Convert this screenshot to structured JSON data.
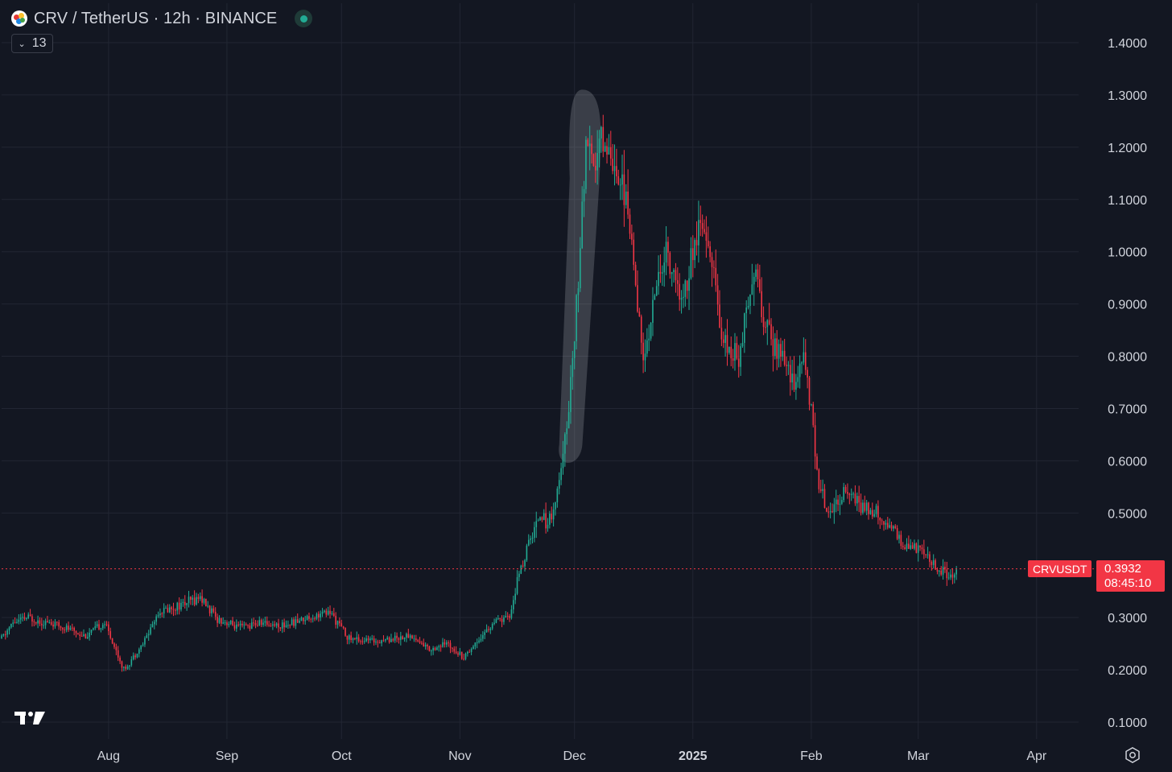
{
  "header": {
    "title": "CRV / TetherUS · 12h · BINANCE",
    "indicators_count": "13"
  },
  "colors": {
    "background": "#131722",
    "up": "#22ab94",
    "down": "#f23645",
    "grid": "#222633",
    "text": "#d1d4dc",
    "highlight": "#c8cbd2"
  },
  "last_price": {
    "symbol": "CRVUSDT",
    "price": "0.3932",
    "countdown": "08:45:10"
  },
  "chart_data": {
    "type": "candlestick",
    "symbol": "CRVUSDT",
    "exchange": "BINANCE",
    "interval": "12h",
    "y_tick_labels": [
      "1.4000",
      "1.3000",
      "1.2000",
      "1.1000",
      "1.0000",
      "0.9000",
      "0.8000",
      "0.7000",
      "0.6000",
      "0.5000",
      "0.3000",
      "0.2000",
      "0.1000"
    ],
    "ylim": [
      0.05,
      1.42
    ],
    "x_tick_labels": [
      "Aug",
      "Sep",
      "Oct",
      "Nov",
      "Dec",
      "2025",
      "Feb",
      "Mar",
      "Apr"
    ],
    "x_tick_dates": [
      "2024-08-01",
      "2024-09-01",
      "2024-10-01",
      "2024-11-01",
      "2024-12-01",
      "2025-01-01",
      "2025-02-01",
      "2025-03-01",
      "2025-04-01"
    ],
    "x_tick_bold": [
      false,
      false,
      false,
      false,
      false,
      true,
      false,
      false,
      false
    ],
    "xlim": [
      "2024-07-04",
      "2025-04-12"
    ],
    "grid": true,
    "last_value": 0.3932,
    "highlight_range": {
      "start": "2024-11-27",
      "end": "2024-12-08",
      "low": 0.6,
      "high": 1.31
    },
    "close_path": [
      [
        "2024-07-04",
        0.26
      ],
      [
        "2024-07-07",
        0.29
      ],
      [
        "2024-07-11",
        0.3
      ],
      [
        "2024-07-16",
        0.29
      ],
      [
        "2024-07-21",
        0.28
      ],
      [
        "2024-07-26",
        0.265
      ],
      [
        "2024-07-31",
        0.29
      ],
      [
        "2024-08-05",
        0.2
      ],
      [
        "2024-08-10",
        0.25
      ],
      [
        "2024-08-14",
        0.31
      ],
      [
        "2024-08-18",
        0.32
      ],
      [
        "2024-08-22",
        0.33
      ],
      [
        "2024-08-25",
        0.34
      ],
      [
        "2024-08-29",
        0.3
      ],
      [
        "2024-09-04",
        0.28
      ],
      [
        "2024-09-10",
        0.29
      ],
      [
        "2024-09-16",
        0.285
      ],
      [
        "2024-09-22",
        0.3
      ],
      [
        "2024-09-28",
        0.31
      ],
      [
        "2024-10-03",
        0.26
      ],
      [
        "2024-10-09",
        0.255
      ],
      [
        "2024-10-14",
        0.26
      ],
      [
        "2024-10-19",
        0.265
      ],
      [
        "2024-10-24",
        0.24
      ],
      [
        "2024-10-29",
        0.25
      ],
      [
        "2024-11-02",
        0.225
      ],
      [
        "2024-11-06",
        0.26
      ],
      [
        "2024-11-10",
        0.29
      ],
      [
        "2024-11-14",
        0.3
      ],
      [
        "2024-11-16",
        0.37
      ],
      [
        "2024-11-19",
        0.44
      ],
      [
        "2024-11-22",
        0.5
      ],
      [
        "2024-11-24",
        0.48
      ],
      [
        "2024-11-26",
        0.52
      ],
      [
        "2024-11-28",
        0.6
      ],
      [
        "2024-11-30",
        0.75
      ],
      [
        "2024-12-02",
        0.95
      ],
      [
        "2024-12-04",
        1.2
      ],
      [
        "2024-12-06",
        1.15
      ],
      [
        "2024-12-08",
        1.22
      ],
      [
        "2024-12-11",
        1.18
      ],
      [
        "2024-12-14",
        1.12
      ],
      [
        "2024-12-17",
        0.95
      ],
      [
        "2024-12-19",
        0.78
      ],
      [
        "2024-12-22",
        0.92
      ],
      [
        "2024-12-25",
        1.0
      ],
      [
        "2024-12-29",
        0.9
      ],
      [
        "2025-01-01",
        1.0
      ],
      [
        "2025-01-03",
        1.05
      ],
      [
        "2025-01-06",
        0.98
      ],
      [
        "2025-01-09",
        0.82
      ],
      [
        "2025-01-13",
        0.8
      ],
      [
        "2025-01-17",
        0.98
      ],
      [
        "2025-01-20",
        0.85
      ],
      [
        "2025-01-24",
        0.8
      ],
      [
        "2025-01-28",
        0.75
      ],
      [
        "2025-01-30",
        0.8
      ],
      [
        "2025-02-01",
        0.7
      ],
      [
        "2025-02-03",
        0.55
      ],
      [
        "2025-02-06",
        0.5
      ],
      [
        "2025-02-10",
        0.55
      ],
      [
        "2025-02-14",
        0.51
      ],
      [
        "2025-02-18",
        0.5
      ],
      [
        "2025-02-21",
        0.48
      ],
      [
        "2025-02-25",
        0.44
      ],
      [
        "2025-03-01",
        0.43
      ],
      [
        "2025-03-05",
        0.4
      ],
      [
        "2025-03-09",
        0.38
      ],
      [
        "2025-03-11",
        0.3932
      ]
    ]
  }
}
